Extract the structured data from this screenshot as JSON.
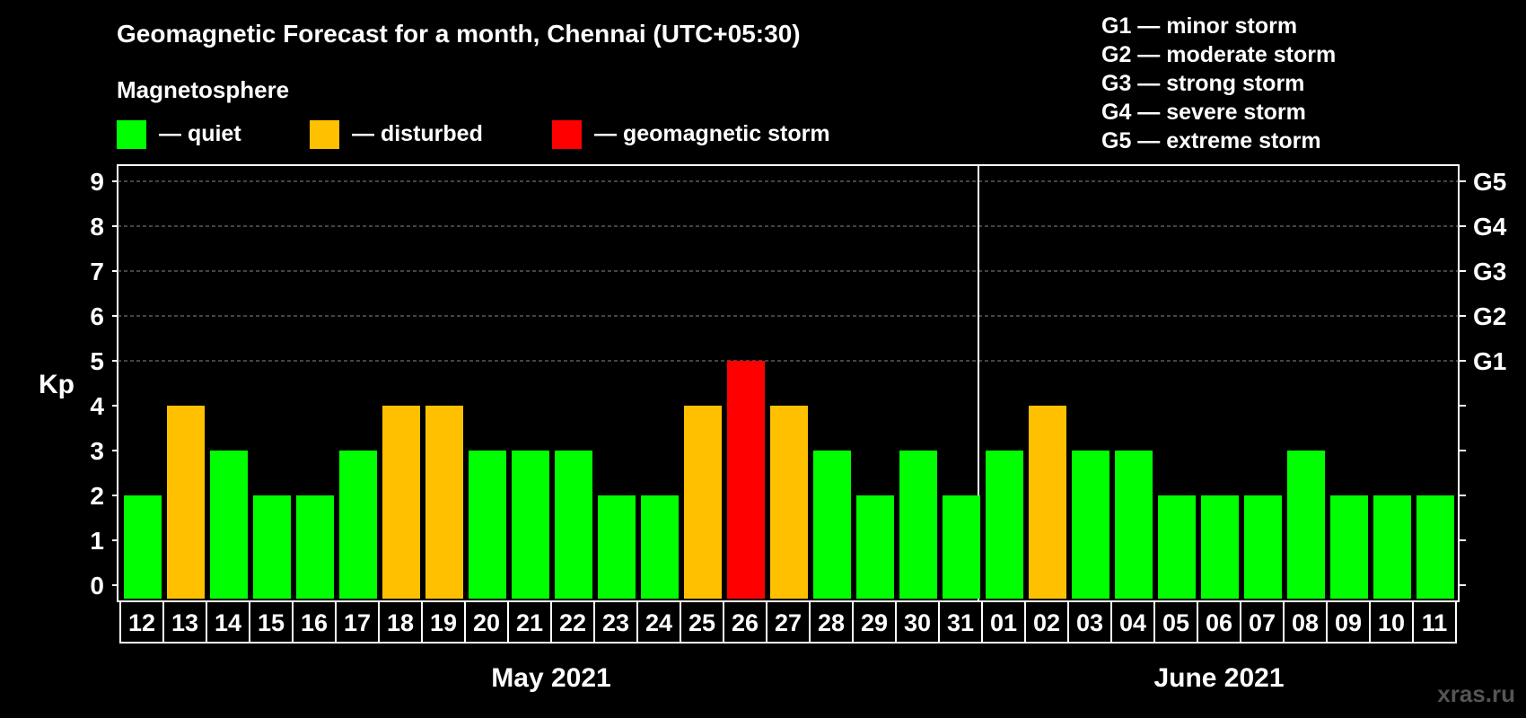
{
  "chart_data": {
    "type": "bar",
    "title": "Geomagnetic Forecast for a month, Chennai (UTC+05:30)",
    "subtitle": "Magnetosphere",
    "ylabel": "Kp",
    "ylim": [
      0,
      9
    ],
    "yticks": [
      "0",
      "1",
      "2",
      "3",
      "4",
      "5",
      "6",
      "7",
      "8",
      "9"
    ],
    "storm_levels": [
      {
        "kp": 5,
        "label": "G1"
      },
      {
        "kp": 6,
        "label": "G2"
      },
      {
        "kp": 7,
        "label": "G3"
      },
      {
        "kp": 8,
        "label": "G4"
      },
      {
        "kp": 9,
        "label": "G5"
      }
    ],
    "legend": [
      {
        "name": "quiet",
        "label": "— quiet",
        "color": "#00FF00"
      },
      {
        "name": "disturbed",
        "label": "— disturbed",
        "color": "#FFC000"
      },
      {
        "name": "storm",
        "label": "— geomagnetic storm",
        "color": "#FF0000"
      }
    ],
    "storm_legend": [
      "G1 — minor storm",
      "G2 — moderate storm",
      "G3 — strong storm",
      "G4 — severe storm",
      "G5 — extreme storm"
    ],
    "months": [
      {
        "label": "May 2021",
        "days": [
          "12",
          "13",
          "14",
          "15",
          "16",
          "17",
          "18",
          "19",
          "20",
          "21",
          "22",
          "23",
          "24",
          "25",
          "26",
          "27",
          "28",
          "29",
          "30",
          "31"
        ]
      },
      {
        "label": "June 2021",
        "days": [
          "01",
          "02",
          "03",
          "04",
          "05",
          "06",
          "07",
          "08",
          "09",
          "10",
          "11"
        ]
      }
    ],
    "categories": [
      "12",
      "13",
      "14",
      "15",
      "16",
      "17",
      "18",
      "19",
      "20",
      "21",
      "22",
      "23",
      "24",
      "25",
      "26",
      "27",
      "28",
      "29",
      "30",
      "31",
      "01",
      "02",
      "03",
      "04",
      "05",
      "06",
      "07",
      "08",
      "09",
      "10",
      "11"
    ],
    "values": [
      2,
      4,
      3,
      2,
      2,
      3,
      4,
      4,
      3,
      3,
      3,
      2,
      2,
      4,
      5,
      4,
      3,
      2,
      3,
      2,
      3,
      4,
      3,
      3,
      2,
      2,
      2,
      3,
      2,
      2,
      2
    ],
    "status": [
      "quiet",
      "disturbed",
      "quiet",
      "quiet",
      "quiet",
      "quiet",
      "disturbed",
      "disturbed",
      "quiet",
      "quiet",
      "quiet",
      "quiet",
      "quiet",
      "disturbed",
      "storm",
      "disturbed",
      "quiet",
      "quiet",
      "quiet",
      "quiet",
      "quiet",
      "disturbed",
      "quiet",
      "quiet",
      "quiet",
      "quiet",
      "quiet",
      "quiet",
      "quiet",
      "quiet",
      "quiet"
    ]
  },
  "watermark": "xras.ru"
}
